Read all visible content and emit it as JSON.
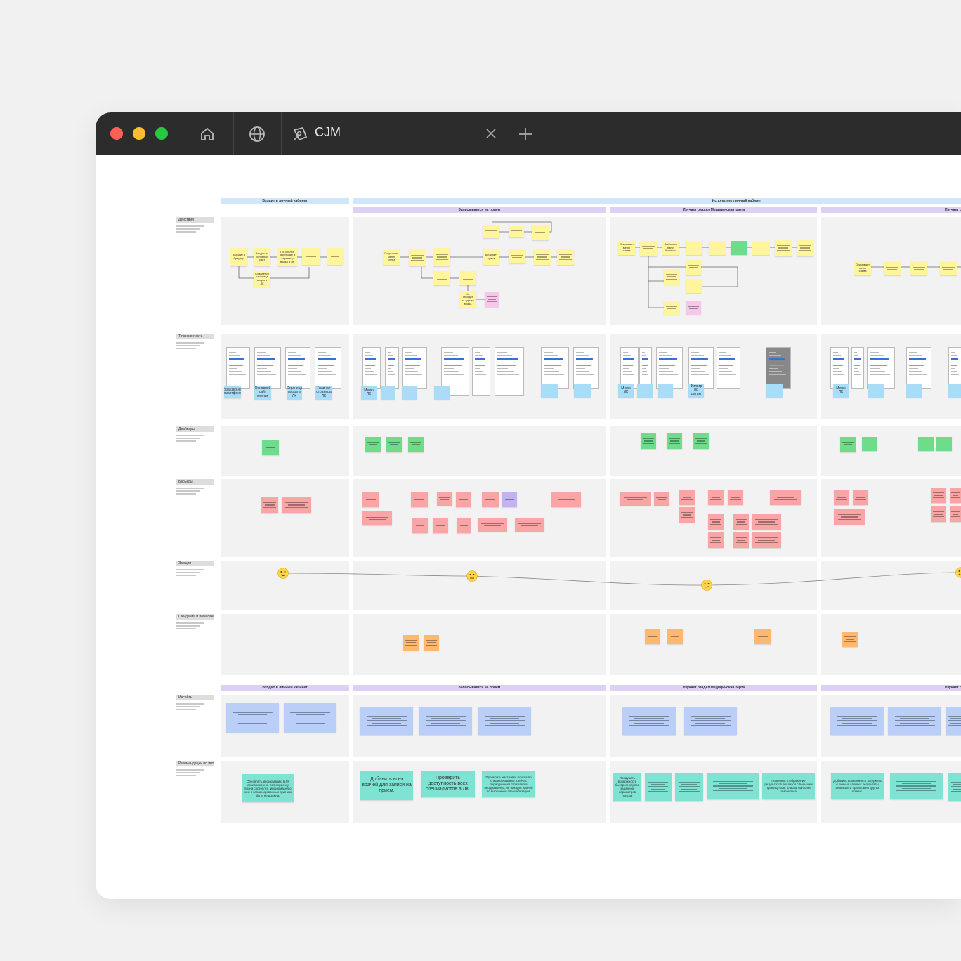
{
  "tab": {
    "title": "CJM"
  },
  "board": {
    "stages": [
      "Входит в личный кабинет",
      "Использует личный кабинет"
    ],
    "substages": [
      "Записывается на прием",
      "Изучает раздел Медицинская карта",
      "Изучает р"
    ],
    "insight_stages": [
      "Входит в личный кабинет",
      "Записывается на прием",
      "Изучает раздел Медицинская карта",
      "Изучает р"
    ],
    "rows": [
      "Действия",
      "Точки контакта",
      "Драйверы",
      "Барьеры",
      "Эмоции",
      "Ожидания и пожелания",
      "Инсайты",
      "Рекомендации по интерфейсу"
    ],
    "actions": [
      "Заходит в браузер",
      "Входит на основной сайт",
      "По ссылке переходит в страницу входа в ЛК",
      "Создается страница входа в ЛК",
      "Открывает меню слева",
      "Выбирает врача",
      "Не заходит на одного врача",
      "Открывает меню слева",
      "Выбирает папку Анализы",
      "Открывает меню слева"
    ],
    "touchpoints": [
      "Браузер на смартфоне",
      "Основной сайт клиник",
      "Страница входа в ЛК",
      "Главная страница ЛК",
      "Меню ЛК",
      "Меню ЛК",
      "Фильтр по датам",
      "Меню ЛК"
    ],
    "recommendations": [
      "Обновлять информацию в ЛК своевременно. Если прием у врача состоялся, информация о нем в запланированных приемах быть не должна.",
      "Добавить всех врачей для записи на прием.",
      "Проверить доступность всех специалистов в ЛК.",
      "Проверить настройки поиска по специализациям. Сейчас периодически отражается неоднозначно, не находит врачей по выбранной специализации.",
      "Продумать возможность быстрого сброса заданных параметров поиска.",
      "Поменять отображение результатов анализов с большим промежутком: плашки на более компактные.",
      "Добавить возможность загружать в личный кабинет результаты анализов и приемов из других клиник."
    ]
  }
}
